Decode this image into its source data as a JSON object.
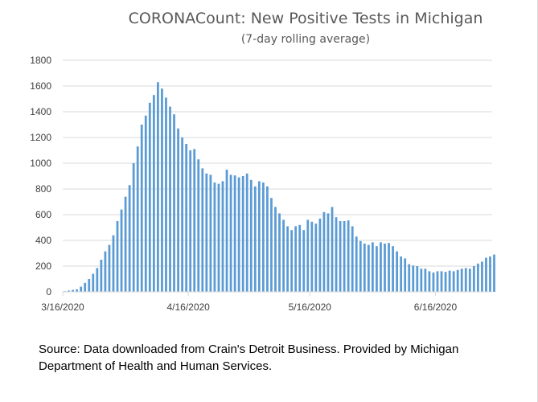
{
  "chart_data": {
    "type": "bar",
    "title": "CORONACount: New Positive Tests in Michigan",
    "subtitle": "(7-day rolling average)",
    "xlabel": "",
    "ylabel": "",
    "x_start": "3/16/2020",
    "x_end": "6/29/2020",
    "x_tick_labels": [
      "3/16/2020",
      "4/16/2020",
      "5/16/2020",
      "6/16/2020"
    ],
    "y_ticks": [
      0,
      200,
      400,
      600,
      800,
      1000,
      1200,
      1400,
      1600,
      1800
    ],
    "ylim": [
      0,
      1800
    ],
    "grid": true,
    "legend": "none",
    "bar_color": "#5b9bd5",
    "values": [
      5,
      10,
      15,
      20,
      40,
      70,
      100,
      140,
      185,
      250,
      315,
      365,
      440,
      550,
      640,
      740,
      830,
      1000,
      1130,
      1300,
      1370,
      1470,
      1530,
      1630,
      1580,
      1510,
      1440,
      1380,
      1270,
      1200,
      1150,
      1100,
      1110,
      1030,
      960,
      920,
      910,
      850,
      840,
      860,
      950,
      910,
      905,
      890,
      900,
      920,
      870,
      820,
      860,
      850,
      820,
      730,
      660,
      610,
      560,
      510,
      480,
      510,
      520,
      480,
      560,
      545,
      530,
      570,
      620,
      610,
      660,
      580,
      550,
      550,
      555,
      510,
      430,
      395,
      375,
      365,
      385,
      355,
      385,
      375,
      380,
      355,
      315,
      275,
      260,
      215,
      205,
      200,
      180,
      180,
      160,
      150,
      160,
      160,
      155,
      165,
      160,
      170,
      180,
      185,
      180,
      200,
      220,
      235,
      265,
      275,
      290
    ]
  },
  "source_note": "Source: Data downloaded from Crain's Detroit Business. Provided by Michigan Department of Health and Human Services."
}
